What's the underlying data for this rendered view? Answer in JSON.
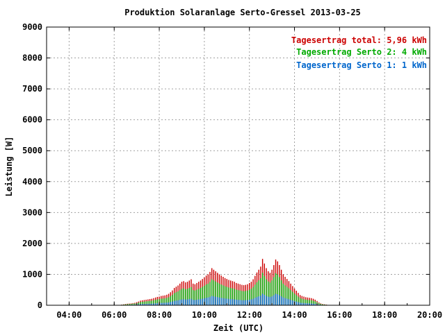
{
  "chart_data": {
    "type": "bar",
    "title": "Produktion Solaranlage Serto-Gressel 2013-03-25",
    "xlabel": "Zeit (UTC)",
    "ylabel": "Leistung [W]",
    "x_range_hours": [
      3.0,
      20.0
    ],
    "ylim": [
      0,
      9000
    ],
    "x_ticks": [
      "04:00",
      "06:00",
      "08:00",
      "10:00",
      "12:00",
      "14:00",
      "16:00",
      "18:00",
      "20:00"
    ],
    "y_ticks": [
      "0",
      "1000",
      "2000",
      "3000",
      "4000",
      "5000",
      "6000",
      "7000",
      "8000",
      "9000"
    ],
    "grid": true,
    "legend_position": "top-right",
    "legend": [
      {
        "label": "Tagesertrag total: 5,96 kWh",
        "color": "#cc0000"
      },
      {
        "label": "Tagesertrag Serto 2: 4 kWh",
        "color": "#00aa00"
      },
      {
        "label": "Tagesertrag Serto 1: 1 kWh",
        "color": "#0066cc"
      }
    ],
    "interval_minutes": 5,
    "start_time": "06:20",
    "series": [
      {
        "name": "Tagesertrag total",
        "color": "#cc0000",
        "values": [
          20,
          30,
          40,
          50,
          55,
          60,
          70,
          80,
          100,
          120,
          150,
          160,
          170,
          180,
          190,
          200,
          210,
          230,
          250,
          270,
          280,
          300,
          310,
          320,
          340,
          370,
          420,
          480,
          560,
          600,
          640,
          700,
          760,
          780,
          740,
          760,
          800,
          840,
          700,
          680,
          720,
          760,
          800,
          850,
          900,
          960,
          1000,
          1080,
          1200,
          1150,
          1100,
          1050,
          1000,
          960,
          920,
          880,
          850,
          820,
          800,
          780,
          760,
          720,
          700,
          680,
          660,
          650,
          660,
          680,
          720,
          760,
          840,
          950,
          1060,
          1150,
          1250,
          1500,
          1350,
          1200,
          1100,
          1050,
          1150,
          1300,
          1480,
          1420,
          1300,
          1150,
          1000,
          920,
          850,
          780,
          700,
          620,
          540,
          470,
          400,
          330,
          300,
          280,
          260,
          250,
          240,
          230,
          210,
          180,
          140,
          90,
          60,
          40,
          30,
          20,
          10
        ]
      },
      {
        "name": "Tagesertrag Serto 2",
        "color": "#00aa00",
        "values": [
          15,
          20,
          28,
          35,
          40,
          42,
          50,
          56,
          70,
          84,
          105,
          112,
          119,
          126,
          133,
          140,
          147,
          161,
          175,
          189,
          196,
          210,
          217,
          224,
          238,
          259,
          294,
          336,
          392,
          420,
          448,
          490,
          532,
          546,
          518,
          532,
          560,
          588,
          490,
          476,
          504,
          532,
          560,
          595,
          630,
          672,
          700,
          756,
          840,
          805,
          770,
          735,
          700,
          672,
          644,
          616,
          595,
          574,
          560,
          546,
          532,
          504,
          490,
          476,
          462,
          455,
          462,
          476,
          504,
          532,
          588,
          665,
          742,
          805,
          875,
          1050,
          945,
          840,
          770,
          735,
          805,
          910,
          1036,
          994,
          910,
          805,
          700,
          644,
          595,
          546,
          490,
          434,
          378,
          329,
          280,
          231,
          210,
          196,
          182,
          175,
          168,
          161,
          147,
          126,
          98,
          63,
          42,
          28,
          21,
          14,
          7
        ]
      },
      {
        "name": "Tagesertrag Serto 1",
        "color": "#0066cc",
        "values": [
          5,
          8,
          10,
          12,
          14,
          15,
          18,
          20,
          25,
          30,
          38,
          40,
          42,
          45,
          48,
          50,
          52,
          58,
          62,
          68,
          70,
          75,
          78,
          80,
          85,
          92,
          105,
          120,
          140,
          150,
          160,
          175,
          190,
          195,
          185,
          190,
          200,
          210,
          175,
          170,
          180,
          190,
          200,
          212,
          225,
          240,
          250,
          270,
          300,
          288,
          275,
          262,
          250,
          240,
          230,
          220,
          212,
          205,
          200,
          195,
          190,
          180,
          175,
          170,
          165,
          162,
          165,
          170,
          180,
          190,
          210,
          238,
          265,
          288,
          312,
          375,
          338,
          300,
          275,
          262,
          288,
          325,
          370,
          355,
          325,
          288,
          250,
          230,
          212,
          195,
          175,
          155,
          135,
          118,
          100,
          82,
          75,
          70,
          65,
          62,
          60,
          58,
          52,
          45,
          35,
          22,
          15,
          10,
          8,
          5,
          2
        ]
      }
    ]
  }
}
